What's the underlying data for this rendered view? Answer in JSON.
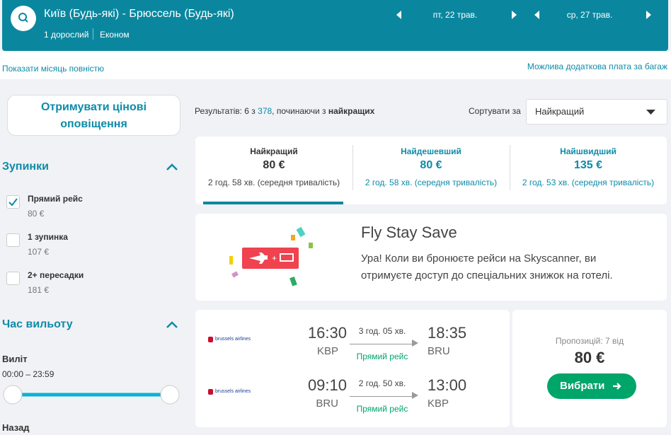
{
  "header": {
    "route": "Київ (Будь-які) - Брюссель (Будь-які)",
    "passengers": "1 дорослий",
    "cabin": "Економ",
    "depart_date": "пт, 22 трав.",
    "return_date": "ср, 27 трав."
  },
  "links": {
    "month": "Показати місяць повністю",
    "baggage": "Можлива додаткова плата за багаж"
  },
  "alerts_button": "Отримувати цінові оповіщення",
  "filters": {
    "stops_title": "Зупинки",
    "stops": [
      {
        "label": "Прямий рейс",
        "price": "80 €",
        "checked": true
      },
      {
        "label": "1 зупинка",
        "price": "107 €",
        "checked": false
      },
      {
        "label": "2+ пересадки",
        "price": "181 €",
        "checked": false
      }
    ],
    "time_title": "Час вильоту",
    "outbound_label": "Виліт",
    "outbound_range": "00:00 – 23:59",
    "return_label": "Назад"
  },
  "results": {
    "prefix": "Результатів: 6 з",
    "total": "378",
    "middle": ", починаючи з",
    "bold": "найкращих"
  },
  "sort": {
    "label": "Сортувати за",
    "value": "Найкращий"
  },
  "tabs": [
    {
      "title": "Найкращий",
      "price": "80 €",
      "duration": "2 год. 58 хв. (середня тривалість)",
      "active": true
    },
    {
      "title": "Найдешевший",
      "price": "80 €",
      "duration": "2 год. 58 хв. (середня тривалість)",
      "active": false
    },
    {
      "title": "Найшвидший",
      "price": "135 €",
      "duration": "2 год. 53 хв. (середня тривалість)",
      "active": false
    }
  ],
  "promo": {
    "title": "Fly Stay Save",
    "text": "Ура! Коли ви бронюєте рейси на Skyscanner, ви отримуєте доступ до спеціальних знижок на готелі."
  },
  "result": {
    "legs": [
      {
        "airline": "brussels airlines",
        "depart_time": "16:30",
        "depart_airport": "KBP",
        "duration": "3 год. 05 хв.",
        "stops": "Прямий рейс",
        "arrive_time": "18:35",
        "arrive_airport": "BRU"
      },
      {
        "airline": "brussels airlines",
        "depart_time": "09:10",
        "depart_airport": "BRU",
        "duration": "2 год. 50 хв.",
        "stops": "Прямий рейс",
        "arrive_time": "13:00",
        "arrive_airport": "KBP"
      }
    ],
    "offers": "Пропозицій: 7 від",
    "price": "80 €",
    "button": "Вибрати"
  }
}
